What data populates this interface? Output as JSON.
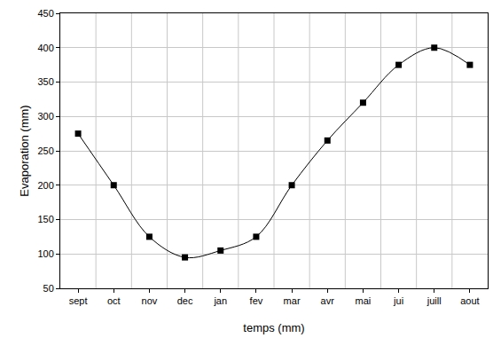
{
  "chart_data": {
    "type": "line",
    "x_label": "temps (mm)",
    "y_label": "Evaporation (mm)",
    "categories": [
      "sept",
      "oct",
      "nov",
      "dec",
      "jan",
      "fev",
      "mar",
      "avr",
      "mai",
      "jui",
      "juill",
      "aout"
    ],
    "values": [
      275,
      200,
      125,
      95,
      105,
      125,
      200,
      265,
      320,
      375,
      400,
      375
    ],
    "color": "#000000",
    "marker": "square",
    "line_style": "solid",
    "ylim": [
      50,
      450
    ],
    "yticks": [
      50,
      100,
      150,
      200,
      250,
      300,
      350,
      400,
      450
    ],
    "grid": true
  }
}
